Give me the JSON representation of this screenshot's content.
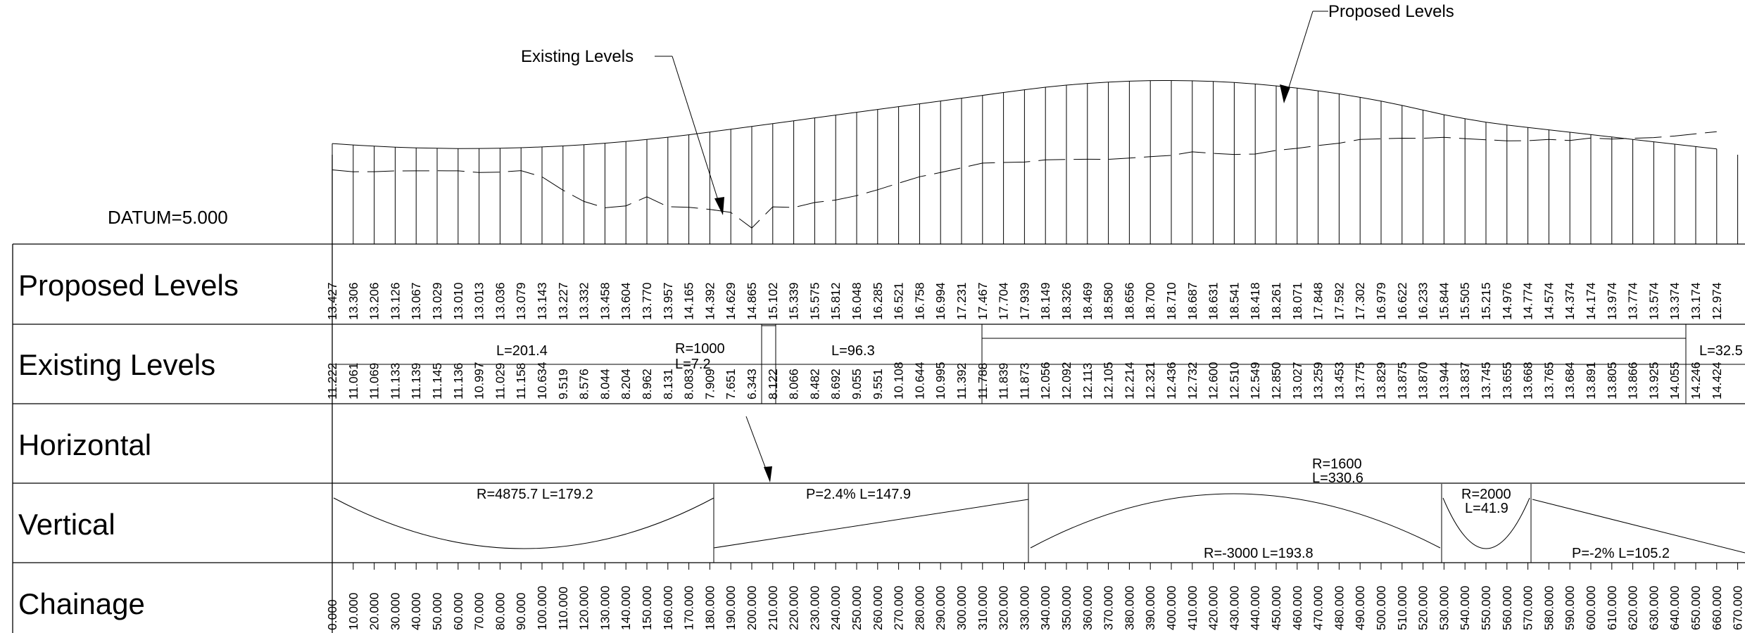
{
  "labels": {
    "datum": "DATUM=5.000",
    "existing_callout": "Existing Levels",
    "proposed_callout": "Proposed Levels"
  },
  "rows": {
    "proposed": "Proposed Levels",
    "existing": "Existing Levels",
    "horizontal": "Horizontal",
    "vertical": "Vertical",
    "chainage": "Chainage"
  },
  "proposed_levels": [
    "13.427",
    "13.306",
    "13.206",
    "13.126",
    "13.067",
    "13.029",
    "13.010",
    "13.013",
    "13.036",
    "13.079",
    "13.143",
    "13.227",
    "13.332",
    "13.458",
    "13.604",
    "13.770",
    "13.957",
    "14.165",
    "14.392",
    "14.629",
    "14.865",
    "15.102",
    "15.339",
    "15.575",
    "15.812",
    "16.048",
    "16.285",
    "16.521",
    "16.758",
    "16.994",
    "17.231",
    "17.467",
    "17.704",
    "17.939",
    "18.149",
    "18.326",
    "18.469",
    "18.580",
    "18.656",
    "18.700",
    "18.710",
    "18.687",
    "18.631",
    "18.541",
    "18.418",
    "18.261",
    "18.071",
    "17.848",
    "17.592",
    "17.302",
    "16.979",
    "16.622",
    "16.233",
    "15.844",
    "15.505",
    "15.215",
    "14.976",
    "14.774",
    "14.574",
    "14.374",
    "14.174",
    "13.974",
    "13.774",
    "13.574",
    "13.374",
    "13.174",
    "12.974"
  ],
  "existing_levels": [
    "11.222",
    "11.061",
    "11.069",
    "11.133",
    "11.139",
    "11.145",
    "11.136",
    "10.997",
    "11.029",
    "11.158",
    "10.634",
    "9.519",
    "8.576",
    "8.044",
    "8.204",
    "8.962",
    "8.131",
    "8.083",
    "7.909",
    "7.651",
    "6.343",
    "8.122",
    "8.066",
    "8.482",
    "8.692",
    "9.055",
    "9.551",
    "10.108",
    "10.644",
    "10.995",
    "11.392",
    "11.788",
    "11.839",
    "11.873",
    "12.056",
    "12.092",
    "12.113",
    "12.105",
    "12.214",
    "12.321",
    "12.436",
    "12.732",
    "12.600",
    "12.510",
    "12.549",
    "12.850",
    "13.027",
    "13.259",
    "13.453",
    "13.775",
    "13.829",
    "13.875",
    "13.870",
    "13.944",
    "13.837",
    "13.745",
    "13.655",
    "13.668",
    "13.765",
    "13.684",
    "13.891",
    "13.805",
    "13.866",
    "13.925",
    "14.055",
    "14.246",
    "14.424"
  ],
  "chainages": [
    "0.000",
    "10.000",
    "20.000",
    "30.000",
    "40.000",
    "50.000",
    "60.000",
    "70.000",
    "80.000",
    "90.000",
    "100.000",
    "110.000",
    "120.000",
    "130.000",
    "140.000",
    "150.000",
    "160.000",
    "170.000",
    "180.000",
    "190.000",
    "200.000",
    "210.000",
    "220.000",
    "230.000",
    "240.000",
    "250.000",
    "260.000",
    "270.000",
    "280.000",
    "290.000",
    "300.000",
    "310.000",
    "320.000",
    "330.000",
    "340.000",
    "350.000",
    "360.000",
    "370.000",
    "380.000",
    "390.000",
    "400.000",
    "410.000",
    "420.000",
    "430.000",
    "440.000",
    "450.000",
    "460.000",
    "470.000",
    "480.000",
    "490.000",
    "500.000",
    "510.000",
    "520.000",
    "530.000",
    "540.000",
    "550.000",
    "560.000",
    "570.000",
    "580.000",
    "590.000",
    "600.000",
    "610.000",
    "620.000",
    "630.000",
    "640.000",
    "650.000",
    "660.000",
    "670.000"
  ],
  "horizontal": {
    "seg1_len": "L=201.4",
    "curve1_r": "R=1000",
    "curve1_l": "L=7.2",
    "seg2_len": "L=96.3",
    "curve2_r": "R=1600",
    "curve2_l": "L=330.6",
    "seg3_len": "L=32.5"
  },
  "vertical": {
    "curve1": "R=4875.7 L=179.2",
    "grade1": "P=2.4% L=147.9",
    "curve2": "R=-3000 L=193.8",
    "curve3_r": "R=2000",
    "curve3_l": "L=41.9",
    "grade2": "P=-2% L=105.2"
  }
}
